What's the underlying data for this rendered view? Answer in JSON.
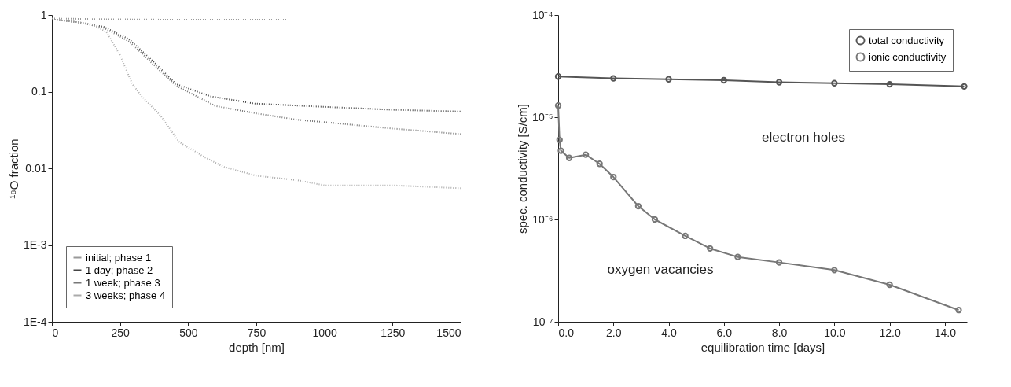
{
  "chart_data": [
    {
      "type": "line",
      "xlabel": "depth [nm]",
      "ylabel": "¹⁸O fraction",
      "log": "y",
      "xlim": [
        0,
        1500
      ],
      "xticks": [
        0,
        250,
        500,
        750,
        1000,
        1250,
        1500
      ],
      "ylim": [
        0.0001,
        1
      ],
      "yticks": [
        {
          "value": 0.0001,
          "label": "1E-4"
        },
        {
          "value": 0.001,
          "label": "1E-3"
        },
        0.01,
        0.1,
        1
      ],
      "grid": false,
      "legend": "bottom left",
      "line_style": "dotted",
      "series": [
        {
          "name": "initial; phase 1",
          "color": "#999999",
          "x": [
            0,
            200,
            400,
            600,
            860
          ],
          "values": [
            0.9,
            0.88,
            0.87,
            0.87,
            0.87
          ]
        },
        {
          "name": "1 day;   phase 2",
          "color": "#444444",
          "x": [
            10,
            100,
            190,
            284,
            376,
            455,
            581,
            742,
            972,
            1250,
            1500
          ],
          "values": [
            0.87,
            0.8,
            0.7,
            0.48,
            0.24,
            0.126,
            0.087,
            0.07,
            0.064,
            0.058,
            0.055
          ]
        },
        {
          "name": "1 week;  phase 3",
          "color": "#777777",
          "x": [
            10,
            100,
            190,
            284,
            376,
            455,
            600,
            750,
            900,
            1000,
            1250,
            1500
          ],
          "values": [
            0.87,
            0.8,
            0.68,
            0.45,
            0.22,
            0.12,
            0.065,
            0.052,
            0.043,
            0.04,
            0.033,
            0.028
          ]
        },
        {
          "name": "3 weeks; phase 4",
          "color": "#aaaaaa",
          "x": [
            10,
            100,
            150,
            200,
            250,
            295,
            330,
            400,
            467,
            560,
            629,
            750,
            900,
            1000,
            1250,
            1500
          ],
          "values": [
            0.87,
            0.8,
            0.75,
            0.6,
            0.3,
            0.126,
            0.087,
            0.048,
            0.022,
            0.014,
            0.0105,
            0.008,
            0.007,
            0.006,
            0.006,
            0.0055
          ]
        }
      ]
    },
    {
      "type": "line",
      "xlabel": "equilibration time [days]",
      "ylabel": "spec. conductivity [S/cm]",
      "log": "y",
      "xlim": [
        0,
        14.8
      ],
      "xticks": [
        {
          "value": 0,
          "label": "0.0"
        },
        {
          "value": 2,
          "label": "2.0"
        },
        {
          "value": 4,
          "label": "4.0"
        },
        {
          "value": 6,
          "label": "6.0"
        },
        {
          "value": 8,
          "label": "8.0"
        },
        {
          "value": 10,
          "label": "10.0"
        },
        {
          "value": 12,
          "label": "12.0"
        },
        {
          "value": 14,
          "label": "14.0"
        }
      ],
      "ylim": [
        1e-07,
        0.0001
      ],
      "yticks": [
        {
          "value": 1e-07,
          "label": "10⁻⁷"
        },
        {
          "value": 1e-06,
          "label": "10⁻⁶"
        },
        {
          "value": 1e-05,
          "label": "10⁻⁵"
        },
        {
          "value": 0.0001,
          "label": "10⁻⁴"
        }
      ],
      "grid": false,
      "legend": "top right",
      "marker": "circle",
      "annotations": [
        "electron holes",
        "oxygen vacancies"
      ],
      "series": [
        {
          "name": "total conductivity",
          "color": "#555555",
          "x": [
            0,
            2,
            4,
            6,
            8,
            10,
            12,
            14.7
          ],
          "values": [
            2.5e-05,
            2.4e-05,
            2.35e-05,
            2.3e-05,
            2.2e-05,
            2.15e-05,
            2.1e-05,
            2e-05
          ]
        },
        {
          "name": "ionic conductivity",
          "color": "#777777",
          "x": [
            0,
            0.05,
            0.1,
            0.4,
            1,
            1.5,
            2,
            2.9,
            3.5,
            4.6,
            5.5,
            6.5,
            8,
            10,
            12,
            14.5
          ],
          "values": [
            1.3e-05,
            6e-06,
            4.7e-06,
            4e-06,
            4.3e-06,
            3.5e-06,
            2.6e-06,
            1.35e-06,
            1e-06,
            6.9e-07,
            5.2e-07,
            4.3e-07,
            3.8e-07,
            3.2e-07,
            2.3e-07,
            1.3e-07
          ]
        }
      ]
    }
  ]
}
